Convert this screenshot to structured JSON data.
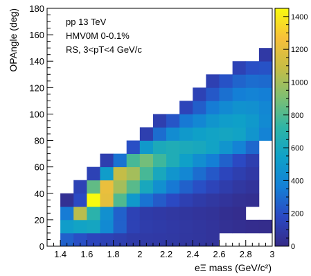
{
  "chart_data": {
    "type": "heatmap",
    "title": "",
    "xlabel": "eΞ mass (GeV/c²)",
    "ylabel": "OPAngle (deg)",
    "xlim": [
      1.3,
      3.0
    ],
    "ylim": [
      0,
      180
    ],
    "bin_width_x": 0.1,
    "bin_width_y": 10,
    "x_ticks": [
      "1.4",
      "1.6",
      "1.8",
      "2",
      "2.2",
      "2.4",
      "2.6",
      "2.8",
      "3"
    ],
    "y_ticks": [
      "0",
      "20",
      "40",
      "60",
      "80",
      "100",
      "120",
      "140",
      "160",
      "180"
    ],
    "z_range": [
      0,
      1450
    ],
    "colorbar_ticks": [
      "0",
      "200",
      "400",
      "600",
      "800",
      "1000",
      "1200",
      "1400"
    ],
    "annotations": [
      "pp 13 TeV",
      "HMV0M 0-0.1%",
      "RS, 3<pT<4 GeV/c"
    ],
    "colormap": [
      "#352a87",
      "#2b49c3",
      "#1480d6",
      "#0fa1c8",
      "#2fb5a6",
      "#7ebf72",
      "#c7bd45",
      "#f7c03a",
      "#f9fb0e"
    ],
    "rows": [
      {
        "y": 0,
        "x_start": 1.4,
        "values": [
          260,
          200,
          160,
          140,
          120,
          100,
          95,
          90,
          85,
          75,
          70,
          60
        ]
      },
      {
        "y": 10,
        "x_start": 1.4,
        "values": [
          520,
          560,
          580,
          420,
          260,
          140,
          110,
          100,
          90,
          80,
          70,
          60,
          40,
          30,
          20,
          15
        ]
      },
      {
        "y": 20,
        "x_start": 1.4,
        "values": [
          350,
          1050,
          700,
          450,
          260,
          140,
          100,
          90,
          80,
          70,
          60,
          50,
          30,
          20
        ]
      },
      {
        "y": 30,
        "x_start": 1.4,
        "values": [
          40,
          180,
          1450,
          1200,
          800,
          500,
          320,
          240,
          180,
          130,
          100,
          80,
          60,
          40,
          30
        ]
      },
      {
        "y": 40,
        "x_start": 1.5,
        "values": [
          140,
          840,
          1220,
          1000,
          820,
          600,
          450,
          340,
          260,
          200,
          150,
          110,
          80,
          60
        ]
      },
      {
        "y": 50,
        "x_start": 1.6,
        "values": [
          140,
          520,
          1080,
          1000,
          780,
          600,
          480,
          400,
          300,
          230,
          160,
          120,
          90
        ]
      },
      {
        "y": 60,
        "x_start": 1.7,
        "values": [
          120,
          320,
          780,
          880,
          760,
          640,
          540,
          440,
          360,
          260,
          180,
          120
        ]
      },
      {
        "y": 70,
        "x_start": 1.9,
        "values": [
          200,
          500,
          620,
          640,
          620,
          600,
          560,
          480,
          380,
          280
        ]
      },
      {
        "y": 80,
        "x_start": 2.0,
        "values": [
          120,
          300,
          430,
          500,
          540,
          560,
          580,
          560,
          480,
          380
        ]
      },
      {
        "y": 90,
        "x_start": 2.1,
        "values": [
          120,
          220,
          340,
          400,
          480,
          520,
          540,
          500,
          420
        ]
      },
      {
        "y": 100,
        "x_start": 2.3,
        "values": [
          150,
          250,
          350,
          420,
          460,
          450,
          400
        ]
      },
      {
        "y": 110,
        "x_start": 2.4,
        "values": [
          140,
          230,
          310,
          360,
          380,
          360
        ]
      },
      {
        "y": 120,
        "x_start": 2.5,
        "values": [
          130,
          210,
          270,
          300,
          290
        ]
      },
      {
        "y": 130,
        "x_start": 2.7,
        "values": [
          140,
          200,
          210
        ]
      },
      {
        "y": 140,
        "x_start": 2.9,
        "values": [
          90
        ]
      }
    ]
  }
}
